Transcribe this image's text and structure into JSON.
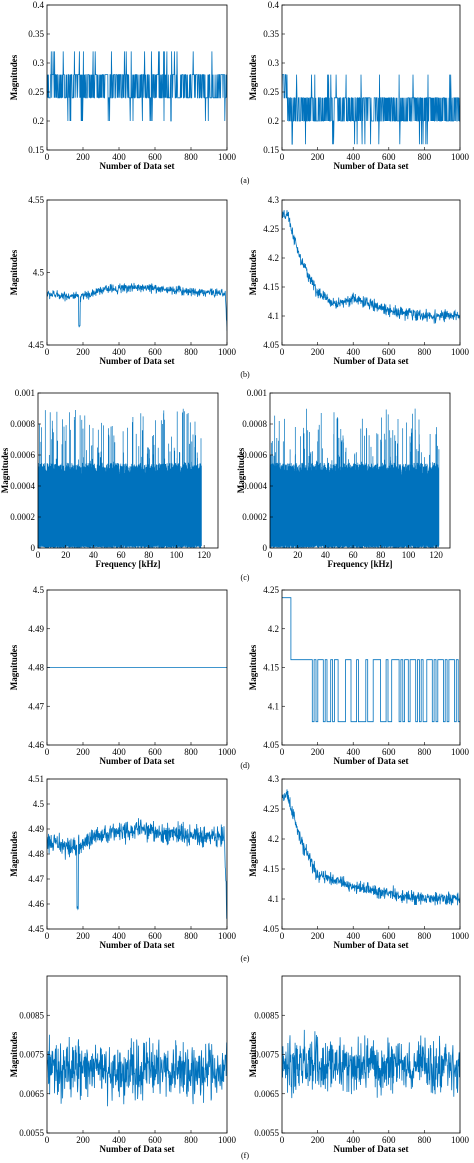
{
  "series_color": "#0072BD",
  "chart_data": [
    {
      "id": "a-left",
      "type": "line",
      "panel": "(a)",
      "pattern": "binary",
      "x_range": [
        0,
        1000
      ],
      "ylim": [
        0.15,
        0.4
      ],
      "levels": [
        0.24,
        0.28
      ],
      "spikes": [
        0.2,
        0.32
      ],
      "xticks": [
        "0",
        "200",
        "400",
        "600",
        "800",
        "1000"
      ],
      "yticks": [
        "0.15",
        "0.2",
        "0.25",
        "0.3",
        "0.35",
        "0.4"
      ],
      "xlabel": "Number of Data set",
      "ylabel": "Magnitudes"
    },
    {
      "id": "a-right",
      "type": "line",
      "pattern": "binary",
      "x_range": [
        0,
        1000
      ],
      "ylim": [
        0.15,
        0.4
      ],
      "levels": [
        0.2,
        0.24
      ],
      "spikes": [
        0.16,
        0.28
      ],
      "initial": {
        "x": [
          0,
          30
        ],
        "low": 0.24,
        "high": 0.28
      },
      "xticks": [
        "0",
        "200",
        "400",
        "600",
        "800",
        "1000"
      ],
      "yticks": [
        "0.15",
        "0.2",
        "0.25",
        "0.3",
        "0.35",
        "0.4"
      ],
      "xlabel": "Number of Data set",
      "ylabel": "Magnitudes"
    },
    {
      "id": "b-left",
      "type": "line",
      "panel": "(b)",
      "pattern": "noise",
      "x_range": [
        0,
        1000
      ],
      "ylim": [
        4.45,
        4.55
      ],
      "trend": [
        [
          0,
          4.485
        ],
        [
          200,
          4.483
        ],
        [
          300,
          4.488
        ],
        [
          500,
          4.49
        ],
        [
          800,
          4.487
        ],
        [
          990,
          4.486
        ],
        [
          1000,
          4.46
        ]
      ],
      "noise": 0.003,
      "dips": [
        [
          180,
          4.462
        ]
      ],
      "xticks": [
        "0",
        "200",
        "400",
        "600",
        "800",
        "1000"
      ],
      "yticks": [
        "4.45",
        "4.5",
        "4.55"
      ],
      "xlabel": "Number of Data set",
      "ylabel": "Magnitudes"
    },
    {
      "id": "b-right",
      "type": "line",
      "pattern": "noise",
      "x_range": [
        0,
        1000
      ],
      "ylim": [
        4.05,
        4.3
      ],
      "trend": [
        [
          0,
          4.27
        ],
        [
          30,
          4.275
        ],
        [
          100,
          4.2
        ],
        [
          200,
          4.14
        ],
        [
          300,
          4.12
        ],
        [
          400,
          4.13
        ],
        [
          600,
          4.11
        ],
        [
          800,
          4.1
        ],
        [
          1000,
          4.1
        ]
      ],
      "noise": 0.01,
      "dips": [],
      "xticks": [
        "0",
        "200",
        "400",
        "600",
        "800",
        "1000"
      ],
      "yticks": [
        "4.05",
        "4.1",
        "4.15",
        "4.2",
        "4.25",
        "4.3"
      ],
      "xlabel": "Number of Data set",
      "ylabel": "Magnitudes"
    },
    {
      "id": "c-left",
      "type": "bar",
      "panel": "(c)",
      "pattern": "spectrum",
      "x_range": [
        0,
        118
      ],
      "xlim": [
        0,
        130
      ],
      "ylim": [
        0,
        0.001
      ],
      "base_max": 0.00055,
      "peak_max": 0.0009,
      "xticks": [
        "0",
        "20",
        "40",
        "60",
        "80",
        "100",
        "120"
      ],
      "yticks": [
        "0",
        "0.0002",
        "0.0004",
        "0.0006",
        "0.0008",
        "0.001"
      ],
      "xlabel": "Frequency [kHz]",
      "ylabel": "Magnitudes"
    },
    {
      "id": "c-right",
      "type": "bar",
      "pattern": "spectrum",
      "x_range": [
        0,
        122
      ],
      "xlim": [
        0,
        130
      ],
      "ylim": [
        0,
        0.001
      ],
      "base_max": 0.00055,
      "peak_max": 0.0009,
      "xticks": [
        "0",
        "20",
        "40",
        "60",
        "80",
        "100",
        "120"
      ],
      "yticks": [
        "0",
        "0.0002",
        "0.0004",
        "0.0006",
        "0.0008",
        "0.001"
      ],
      "xlabel": "Frequency [kHz]",
      "ylabel": "Magnitudes"
    },
    {
      "id": "d-left",
      "type": "line",
      "panel": "(d)",
      "pattern": "constant",
      "x_range": [
        0,
        1000
      ],
      "ylim": [
        4.46,
        4.5
      ],
      "value": 4.48,
      "xticks": [
        "0",
        "200",
        "400",
        "600",
        "800",
        "1000"
      ],
      "yticks": [
        "4.46",
        "4.47",
        "4.48",
        "4.49",
        "4.5"
      ],
      "xlabel": "Number of Data set",
      "ylabel": "Magnitudes"
    },
    {
      "id": "d-right",
      "type": "line",
      "pattern": "steps",
      "x_range": [
        0,
        1000
      ],
      "ylim": [
        4.05,
        4.25
      ],
      "segments": [
        [
          0,
          50,
          4.24
        ],
        [
          50,
          170,
          4.16
        ]
      ],
      "levels": [
        4.08,
        4.16
      ],
      "xticks": [
        "0",
        "200",
        "400",
        "600",
        "800",
        "1000"
      ],
      "yticks": [
        "4.05",
        "4.1",
        "4.15",
        "4.2",
        "4.25"
      ],
      "xlabel": "Number of Data set",
      "ylabel": "Magnitudes"
    },
    {
      "id": "e-left",
      "type": "line",
      "panel": "(e)",
      "pattern": "noise",
      "x_range": [
        0,
        1000
      ],
      "ylim": [
        4.45,
        4.51
      ],
      "trend": [
        [
          0,
          4.485
        ],
        [
          150,
          4.482
        ],
        [
          300,
          4.488
        ],
        [
          500,
          4.49
        ],
        [
          800,
          4.487
        ],
        [
          985,
          4.487
        ],
        [
          1000,
          4.455
        ]
      ],
      "noise": 0.004,
      "dips": [
        [
          170,
          4.457
        ]
      ],
      "xticks": [
        "0",
        "200",
        "400",
        "600",
        "800",
        "1000"
      ],
      "yticks": [
        "4.45",
        "4.46",
        "4.47",
        "4.48",
        "4.49",
        "4.5",
        "4.51"
      ],
      "xlabel": "Number of Data set",
      "ylabel": "Magnitudes"
    },
    {
      "id": "e-right",
      "type": "line",
      "pattern": "noise",
      "x_range": [
        0,
        1000
      ],
      "ylim": [
        4.05,
        4.3
      ],
      "trend": [
        [
          0,
          4.27
        ],
        [
          30,
          4.275
        ],
        [
          100,
          4.2
        ],
        [
          200,
          4.14
        ],
        [
          300,
          4.13
        ],
        [
          400,
          4.12
        ],
        [
          600,
          4.11
        ],
        [
          800,
          4.1
        ],
        [
          1000,
          4.1
        ]
      ],
      "noise": 0.011,
      "dips": [],
      "xticks": [
        "0",
        "200",
        "400",
        "600",
        "800",
        "1000"
      ],
      "yticks": [
        "4.05",
        "4.1",
        "4.15",
        "4.2",
        "4.25",
        "4.3"
      ],
      "xlabel": "Number of Data set",
      "ylabel": "Magnitudes"
    },
    {
      "id": "f-left",
      "type": "line",
      "panel": "(f)",
      "pattern": "noise",
      "x_range": [
        0,
        1000
      ],
      "ylim": [
        0.0055,
        0.0095
      ],
      "trend": [
        [
          0,
          0.0071
        ],
        [
          1000,
          0.0071
        ]
      ],
      "noise": 0.0007,
      "dips": [],
      "xticks": [
        "0",
        "200",
        "400",
        "600",
        "800",
        "1000"
      ],
      "yticks": [
        "0.0055",
        "0.0065",
        "0.0075",
        "0.0085"
      ],
      "xlabel": "Number of Data set",
      "ylabel": "Magnitudes"
    },
    {
      "id": "f-right",
      "type": "line",
      "pattern": "noise",
      "x_range": [
        0,
        1000
      ],
      "ylim": [
        0.0055,
        0.0095
      ],
      "trend": [
        [
          0,
          0.0072
        ],
        [
          1000,
          0.0072
        ]
      ],
      "noise": 0.0007,
      "dips": [],
      "xticks": [
        "0",
        "200",
        "400",
        "600",
        "800",
        "1000"
      ],
      "yticks": [
        "0.0055",
        "0.0065",
        "0.0075",
        "0.0085"
      ],
      "xlabel": "Number of Data set",
      "ylabel": "Magnitudes"
    }
  ]
}
